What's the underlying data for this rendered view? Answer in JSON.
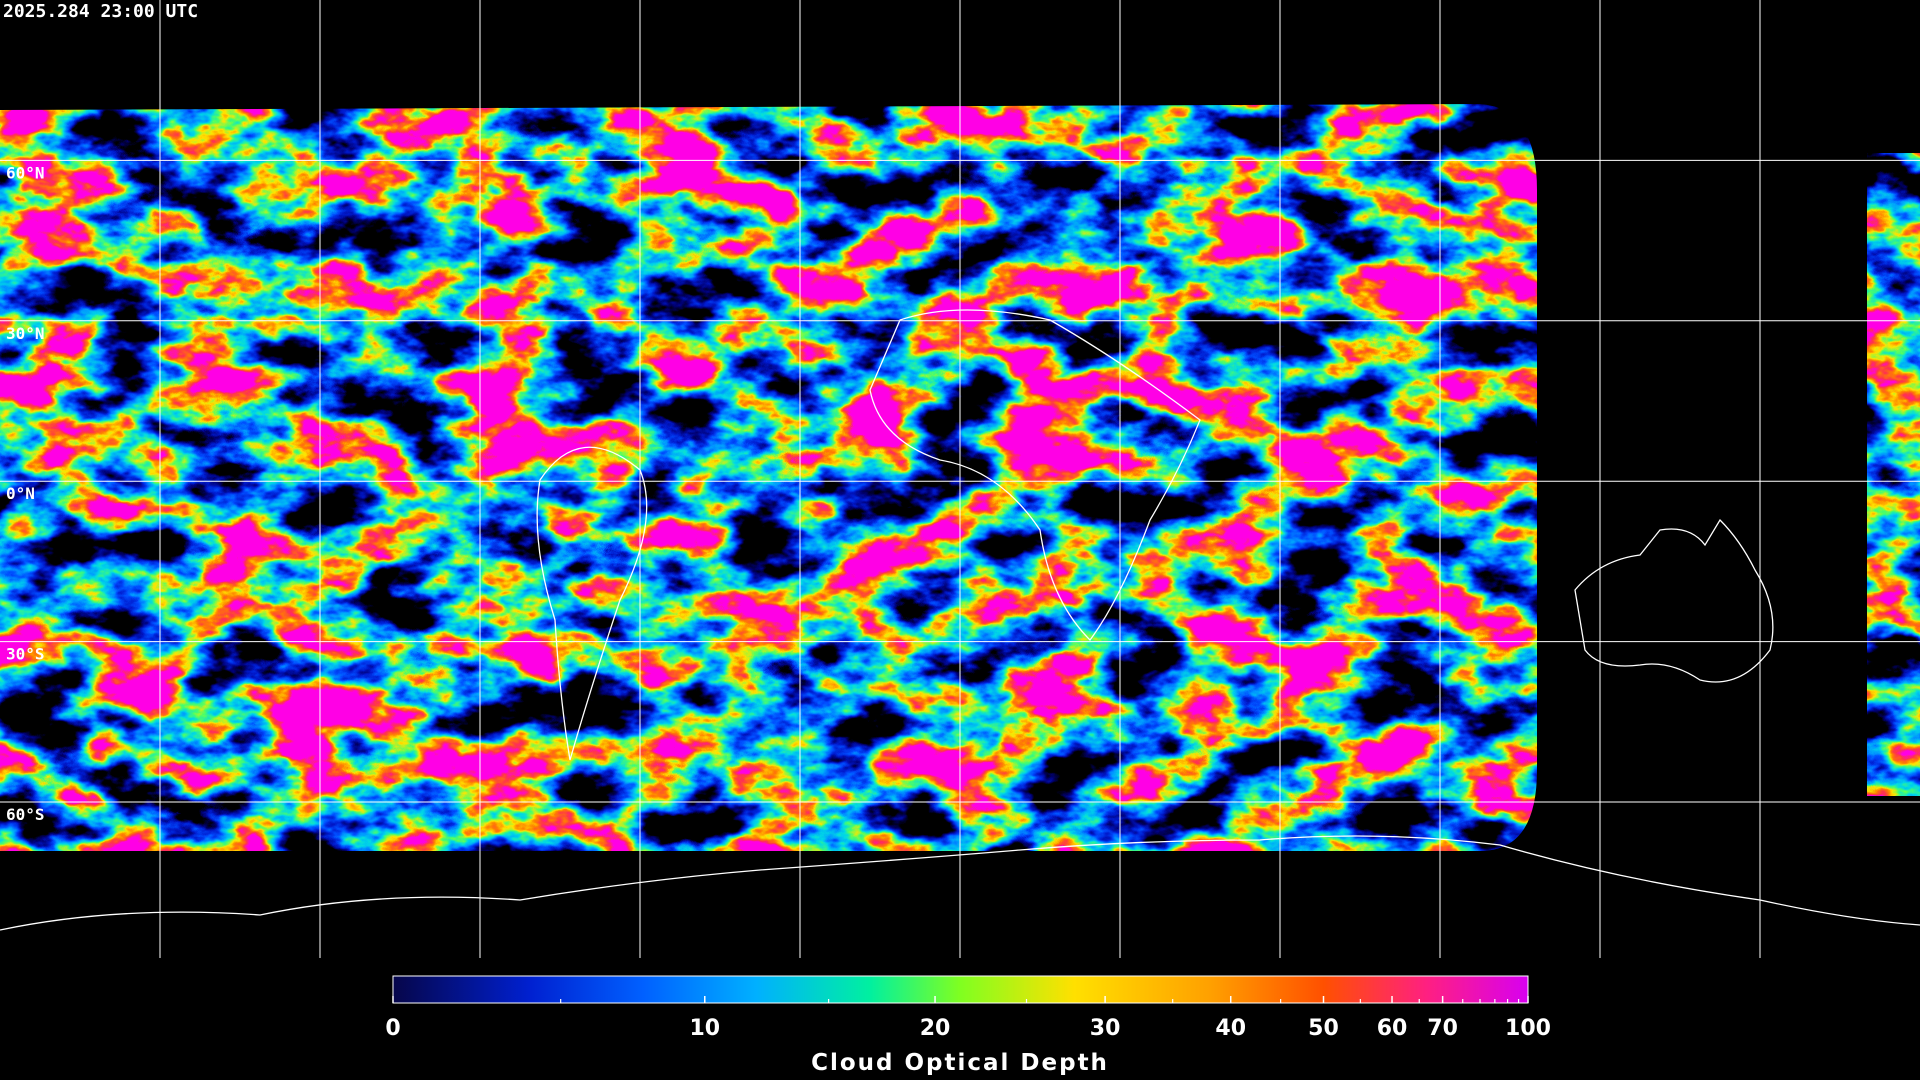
{
  "timestamp": "2025.284 23:00 UTC",
  "map": {
    "lat_ticks": [
      {
        "value": 60,
        "label": "60°N"
      },
      {
        "value": 30,
        "label": "30°N"
      },
      {
        "value": 0,
        "label": "0°N"
      },
      {
        "value": -30,
        "label": "30°S"
      },
      {
        "value": -60,
        "label": "60°S"
      }
    ]
  },
  "colorbar": {
    "label": "Cloud Optical Depth",
    "range": [
      0,
      100
    ],
    "ticks": [
      0,
      10,
      20,
      30,
      40,
      50,
      60,
      70,
      100
    ],
    "minor_ticks": [
      5,
      15,
      25,
      35,
      45,
      55,
      65,
      75,
      80,
      85,
      90,
      95
    ]
  }
}
